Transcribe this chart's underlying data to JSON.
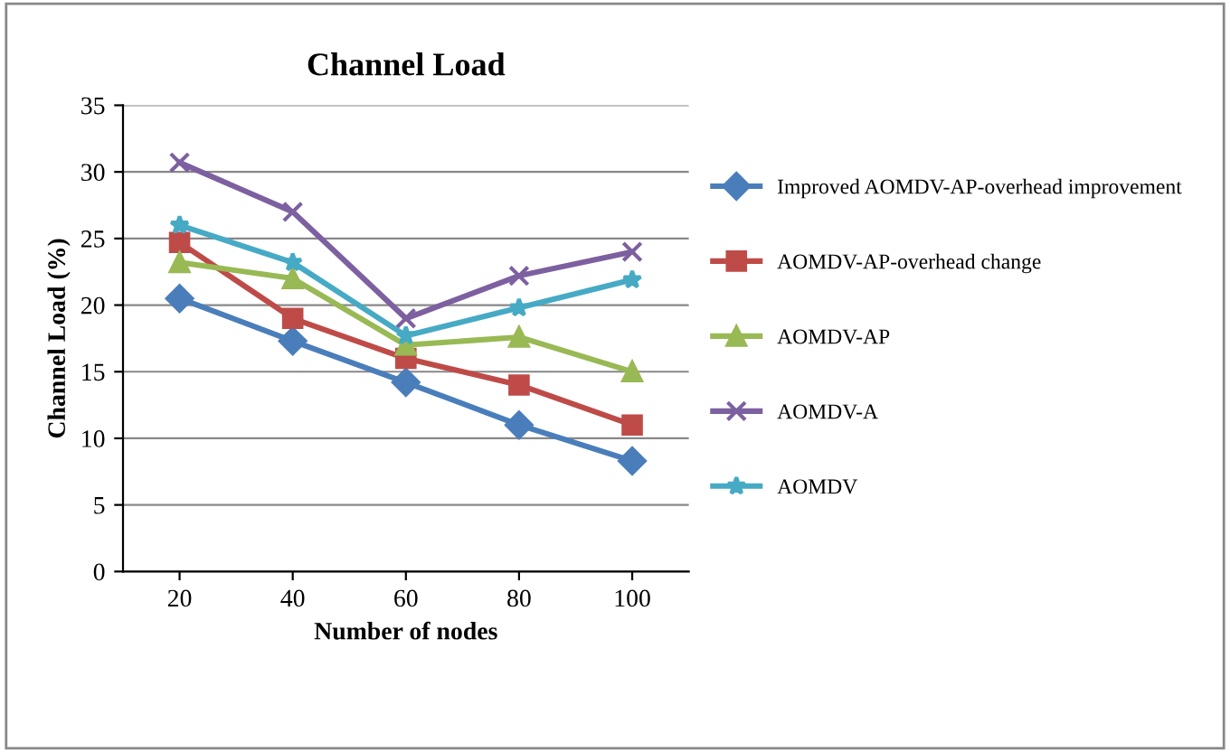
{
  "chart_data": {
    "type": "line",
    "title": "Channel Load",
    "xlabel": "Number of nodes",
    "ylabel": "Channel Load (%)",
    "categories": [
      "20",
      "40",
      "60",
      "80",
      "100"
    ],
    "series": [
      {
        "name": "Improved AOMDV-AP-overhead improvement",
        "color": "#4a7ebb",
        "marker": "diamond",
        "values": [
          20.5,
          17.3,
          14.2,
          11,
          8.3
        ]
      },
      {
        "name": "AOMDV-AP-overhead change",
        "color": "#be4b48",
        "marker": "square",
        "values": [
          24.7,
          19,
          16,
          14,
          11
        ]
      },
      {
        "name": "AOMDV-AP",
        "color": "#98b954",
        "marker": "triangle",
        "values": [
          23.2,
          22,
          17,
          17.6,
          15
        ]
      },
      {
        "name": "AOMDV-A",
        "color": "#7d60a0",
        "marker": "cross",
        "values": [
          30.7,
          27,
          19,
          22.2,
          24
        ]
      },
      {
        "name": "AOMDV",
        "color": "#46aac5",
        "marker": "star",
        "values": [
          26,
          23.2,
          17.7,
          19.8,
          21.9
        ]
      }
    ],
    "ylim": [
      0,
      35
    ],
    "yticks": [
      0,
      5,
      10,
      15,
      20,
      25,
      30,
      35
    ],
    "grid": "y",
    "legend": "right"
  }
}
